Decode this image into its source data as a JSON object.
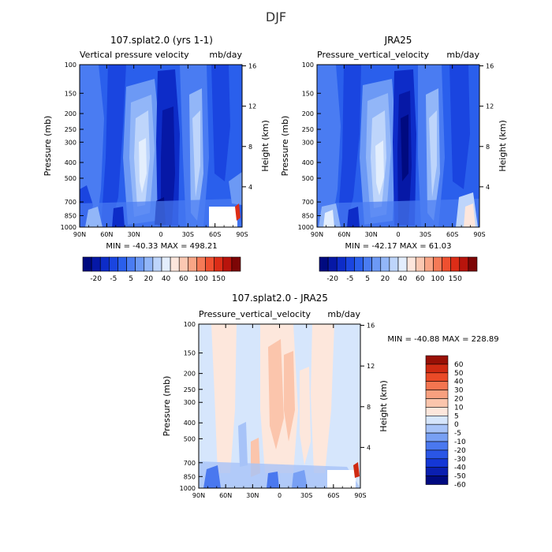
{
  "page": {
    "season": "DJF"
  },
  "colors": {
    "main_scale": [
      "#000a80",
      "#0618a6",
      "#0d2cc8",
      "#1a45e0",
      "#2a5fec",
      "#4a7cf2",
      "#6c99f5",
      "#92b6f8",
      "#bed5fb",
      "#e3eefd",
      "#fde6dc",
      "#fbc8b2",
      "#f9a586",
      "#f57a57",
      "#ef5030",
      "#dc2d17",
      "#b8140c",
      "#7d0606"
    ],
    "diff_scale": [
      "#000a80",
      "#0a1fb0",
      "#1437d6",
      "#2a56e6",
      "#4a78ef",
      "#78a0f4",
      "#a7c3f8",
      "#d6e6fc",
      "#fde7dc",
      "#fbc5ac",
      "#f8a07f",
      "#f47550",
      "#ea4a27",
      "#cf2a12",
      "#991006"
    ]
  },
  "chart_data": [
    {
      "type": "heatmap",
      "id": "model",
      "title": "107.splat2.0 (yrs 1-1)",
      "subtitle_left": "Vertical pressure velocity",
      "subtitle_right": "mb/day",
      "xlabel": "",
      "ylabel": "Pressure (mb)",
      "ylabel_right": "Height (km)",
      "x_ticks": [
        "90N",
        "60N",
        "30N",
        "0",
        "30S",
        "60S",
        "90S"
      ],
      "x_range": [
        90,
        -90
      ],
      "y_ticks": [
        100,
        150,
        200,
        250,
        300,
        400,
        500,
        700,
        850,
        1000
      ],
      "y_range": [
        1000,
        100
      ],
      "height_ticks": [
        16,
        12,
        8,
        4
      ],
      "min": -40.33,
      "max": 498.21,
      "stats_text": "MIN = -40.33   MAX = 498.21",
      "colorbar_labels": [
        "-20",
        "-5",
        "5",
        "20",
        "40",
        "60",
        "100",
        "150"
      ]
    },
    {
      "type": "heatmap",
      "id": "obs",
      "title": "JRA25",
      "subtitle_left": "Pressure_vertical_velocity",
      "subtitle_right": "mb/day",
      "xlabel": "",
      "ylabel": "Pressure (mb)",
      "ylabel_right": "Height (km)",
      "x_ticks": [
        "90N",
        "60N",
        "30N",
        "0",
        "30S",
        "60S",
        "90S"
      ],
      "x_range": [
        90,
        -90
      ],
      "y_ticks": [
        100,
        150,
        200,
        250,
        300,
        400,
        500,
        700,
        850,
        1000
      ],
      "y_range": [
        1000,
        100
      ],
      "height_ticks": [
        16,
        12,
        8,
        4
      ],
      "min": -42.17,
      "max": 61.03,
      "stats_text": "MIN = -42.17   MAX = 61.03",
      "colorbar_labels": [
        "-20",
        "-5",
        "5",
        "20",
        "40",
        "60",
        "100",
        "150"
      ]
    },
    {
      "type": "heatmap",
      "id": "diff",
      "title": "107.splat2.0 - JRA25",
      "subtitle_left": "Pressure_vertical_velocity",
      "subtitle_right": "mb/day",
      "xlabel": "",
      "ylabel": "Pressure (mb)",
      "ylabel_right": "Height (km)",
      "x_ticks": [
        "90N",
        "60N",
        "30N",
        "0",
        "30S",
        "60S",
        "90S"
      ],
      "x_range": [
        90,
        -90
      ],
      "y_ticks": [
        100,
        150,
        200,
        250,
        300,
        400,
        500,
        700,
        850,
        1000
      ],
      "y_range": [
        1000,
        100
      ],
      "height_ticks": [
        16,
        12,
        8,
        4
      ],
      "min": -40.88,
      "max": 228.89,
      "stats_text": "MIN = -40.88   MAX = 228.89",
      "colorbar_labels": [
        "60",
        "50",
        "40",
        "30",
        "20",
        "10",
        "5",
        "0",
        "-5",
        "-10",
        "-20",
        "-30",
        "-40",
        "-50",
        "-60"
      ]
    }
  ]
}
